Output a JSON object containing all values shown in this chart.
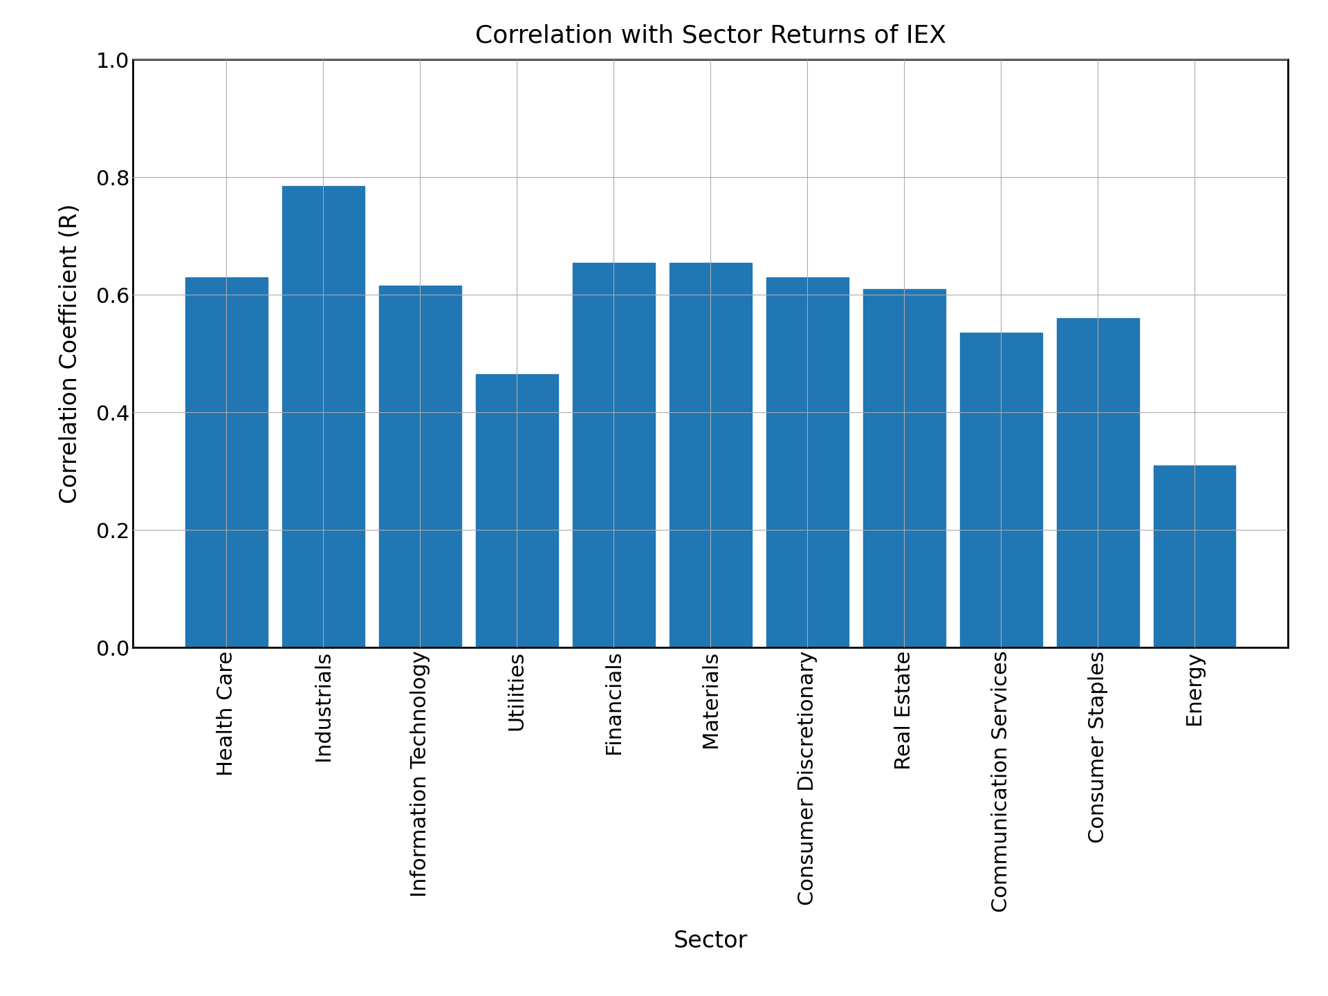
{
  "title": "Correlation with Sector Returns of IEX",
  "xlabel": "Sector",
  "ylabel": "Correlation Coefficient (R)",
  "categories": [
    "Health Care",
    "Industrials",
    "Information Technology",
    "Utilities",
    "Financials",
    "Materials",
    "Consumer Discretionary",
    "Real Estate",
    "Communication Services",
    "Consumer Staples",
    "Energy"
  ],
  "values": [
    0.63,
    0.785,
    0.615,
    0.465,
    0.655,
    0.655,
    0.63,
    0.61,
    0.535,
    0.56,
    0.31
  ],
  "bar_color": "#2077b4",
  "ylim": [
    0.0,
    1.0
  ],
  "yticks": [
    0.0,
    0.2,
    0.4,
    0.6,
    0.8,
    1.0
  ],
  "title_fontsize": 26,
  "label_fontsize": 24,
  "tick_fontsize": 22,
  "bar_width": 0.85,
  "background_color": "#ffffff",
  "grid_color": "#aaaaaa",
  "grid_linewidth": 0.8,
  "spine_linewidth": 2.0
}
